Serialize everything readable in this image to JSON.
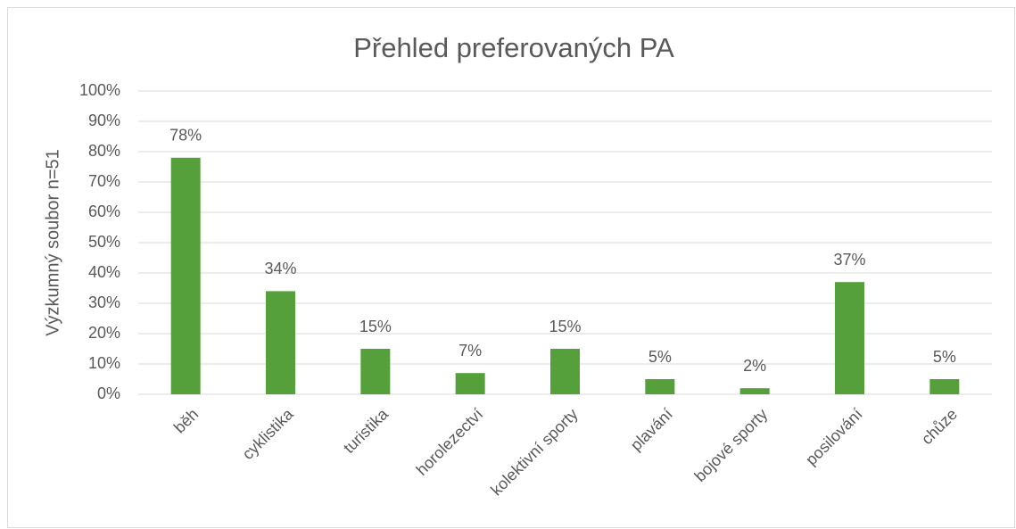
{
  "chart_data": {
    "type": "bar",
    "title": "Přehled preferovaných PA",
    "y_label": "Výzkumný soubor n=51",
    "categories": [
      "běh",
      "cyklistika",
      "turistika",
      "horolezectví",
      "kolektivní sporty",
      "plavání",
      "bojové sporty",
      "posilování",
      "chůze"
    ],
    "values": [
      78,
      34,
      15,
      7,
      15,
      5,
      2,
      37,
      5
    ],
    "value_labels": [
      "78%",
      "34%",
      "15%",
      "7%",
      "15%",
      "5%",
      "2%",
      "37%",
      "5%"
    ],
    "color": "#55a03a",
    "ylim": [
      0,
      100
    ],
    "yticks": [
      {
        "value": 0,
        "label": "0%"
      },
      {
        "value": 10,
        "label": "10%"
      },
      {
        "value": 20,
        "label": "20%"
      },
      {
        "value": 30,
        "label": "30%"
      },
      {
        "value": 40,
        "label": "40%"
      },
      {
        "value": 50,
        "label": "50%"
      },
      {
        "value": 60,
        "label": "60%"
      },
      {
        "value": 70,
        "label": "70%"
      },
      {
        "value": 80,
        "label": "80%"
      },
      {
        "value": 90,
        "label": "90%"
      },
      {
        "value": 100,
        "label": "100%"
      }
    ],
    "grid": true
  }
}
